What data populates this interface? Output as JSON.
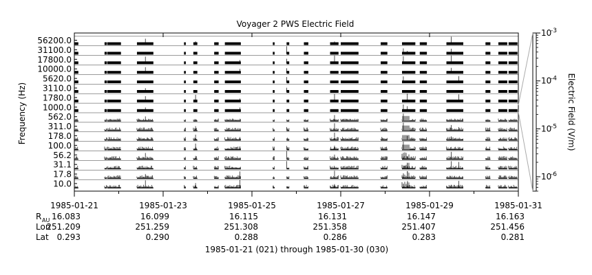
{
  "chart_data": {
    "type": "line",
    "title": "Voyager 2 PWS Electric Field",
    "ylabel": "Frequency (Hz)",
    "colorbar": {
      "label": "Electric Field (V/m)",
      "scale": "log",
      "range": [
        5e-07,
        0.001
      ],
      "ticks": [
        {
          "value": 0.001,
          "base": "10",
          "exp": "-3"
        },
        {
          "value": 0.0001,
          "base": "10",
          "exp": "-4"
        },
        {
          "value": 1e-05,
          "base": "10",
          "exp": "-5"
        },
        {
          "value": 1e-06,
          "base": "10",
          "exp": "-6"
        }
      ]
    },
    "channels": [
      "10.0",
      "17.8",
      "31.1",
      "56.2",
      "100.0",
      "178.0",
      "311.0",
      "562.0",
      "1000.0",
      "1780.0",
      "3110.0",
      "5620.0",
      "10000.0",
      "17800.0",
      "31100.0",
      "56200.0"
    ],
    "x_range": [
      "1985-01-21",
      "1985-01-31"
    ],
    "x_ticks": [
      "1985-01-21",
      "1985-01-23",
      "1985-01-25",
      "1985-01-27",
      "1985-01-29",
      "1985-01-31"
    ],
    "x_minor_ticks_per_major": 2,
    "ephemeris": [
      {
        "label": "R",
        "sub": "AU",
        "values": [
          "16.083",
          "16.099",
          "16.115",
          "16.131",
          "16.147",
          "16.163"
        ]
      },
      {
        "label": "Lon",
        "values": [
          "251.209",
          "251.259",
          "251.308",
          "251.358",
          "251.407",
          "251.456"
        ]
      },
      {
        "label": "Lat",
        "values": [
          "0.293",
          "0.290",
          "0.288",
          "0.286",
          "0.283",
          "0.281"
        ]
      }
    ],
    "xlabel": "1985-01-21 (021) through 1985-01-30 (030)",
    "data_segments_days": [
      [
        0.0,
        0.09
      ],
      [
        0.68,
        0.73
      ],
      [
        0.74,
        1.05
      ],
      [
        1.41,
        1.78
      ],
      [
        2.47,
        2.51
      ],
      [
        2.68,
        2.77
      ],
      [
        3.15,
        3.25
      ],
      [
        3.39,
        3.75
      ],
      [
        4.47,
        4.51
      ],
      [
        4.78,
        4.84
      ],
      [
        5.17,
        5.27
      ],
      [
        5.76,
        5.95
      ],
      [
        6.0,
        6.4
      ],
      [
        6.9,
        7.05
      ],
      [
        7.38,
        7.68
      ],
      [
        7.78,
        7.94
      ],
      [
        8.38,
        8.76
      ],
      [
        9.26,
        9.37
      ],
      [
        9.55,
        9.75
      ],
      [
        9.78,
        9.98
      ]
    ],
    "enhanced_interval_days": [
      7.38,
      7.55
    ],
    "spike_days": [
      1.6,
      2.73,
      3.73,
      4.78,
      5.86,
      7.41,
      7.5,
      8.49,
      8.66
    ],
    "grid": false
  }
}
